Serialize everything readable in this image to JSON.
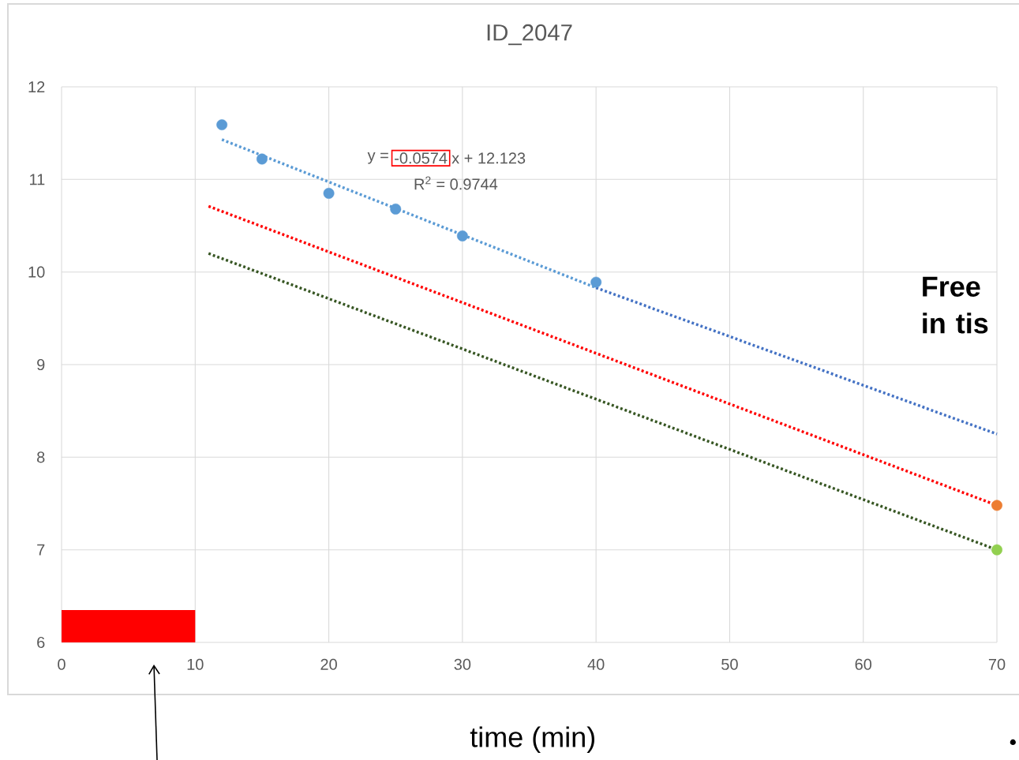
{
  "chart_data": {
    "type": "scatter",
    "title": "ID_2047",
    "xlabel": "time (min)",
    "xlim": [
      0,
      70
    ],
    "xticks": [
      0,
      10,
      20,
      30,
      40,
      50,
      60,
      70
    ],
    "ylim": [
      6,
      12
    ],
    "yticks": [
      6,
      7,
      8,
      9,
      10,
      11,
      12
    ],
    "grid": true,
    "annotations": [
      "y =",
      "-0.0574",
      "x + 12.123",
      "R$^{2}$ = 0.9744",
      "Free in tis",
      "•"
    ],
    "series": [
      {
        "type": "area",
        "color": "#ff0000",
        "x": [
          0,
          10
        ],
        "values": [
          6.35,
          6.35
        ]
      },
      {
        "type": "line",
        "color": "#5b9bd5",
        "line_style": "dotted",
        "marker": "none",
        "x": [
          12,
          40
        ],
        "values": [
          11.43,
          9.83
        ]
      },
      {
        "type": "line",
        "color": "#4472c4",
        "line_style": "dotted",
        "marker": "none",
        "x": [
          40,
          70
        ],
        "values": [
          9.83,
          8.25
        ]
      },
      {
        "type": "line",
        "color": "#ff0000",
        "line_style": "dotted",
        "marker": "none",
        "x": [
          11,
          70
        ],
        "values": [
          10.71,
          7.48
        ]
      },
      {
        "type": "line",
        "color": "#375623",
        "line_style": "dotted",
        "marker": "none",
        "x": [
          11,
          70
        ],
        "values": [
          10.2,
          7.0
        ]
      },
      {
        "color": "#5b9bd5",
        "marker": "circle",
        "x": [
          12,
          15,
          20,
          25,
          30,
          40
        ],
        "values": [
          11.59,
          11.22,
          10.85,
          10.68,
          10.39,
          9.89
        ]
      },
      {
        "color": "#ed7d31",
        "marker": "circle",
        "x": [
          70
        ],
        "values": [
          7.48
        ]
      },
      {
        "color": "#92d050",
        "marker": "circle",
        "x": [
          70
        ],
        "values": [
          7.0
        ]
      }
    ]
  }
}
